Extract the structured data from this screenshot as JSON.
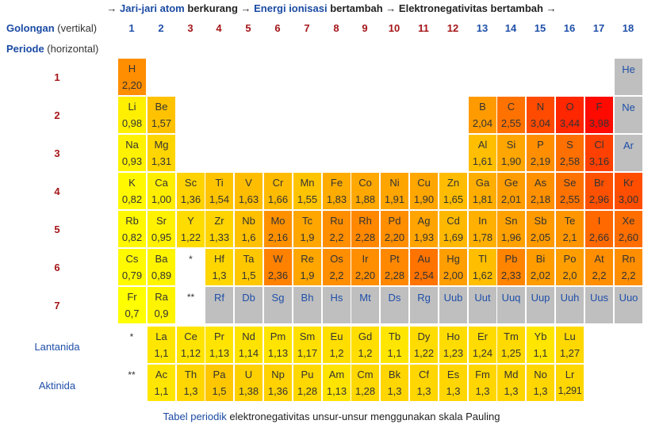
{
  "header": {
    "arrow1": "→",
    "link1": "Jari-jari atom",
    "text1": " berkurang ",
    "arrow2": "→",
    "link2": "Energi ionisasi",
    "text2": " bertambah ",
    "arrow3": "→",
    "text3": " Elektronegativitas bertambah ",
    "arrow4": "→"
  },
  "golongan_label": "Golongan",
  "golongan_sub": " (vertikal)",
  "periode_label": "Periode",
  "periode_sub": " (horizontal)",
  "groups": [
    "1",
    "2",
    "3",
    "4",
    "5",
    "6",
    "7",
    "8",
    "9",
    "10",
    "11",
    "12",
    "13",
    "14",
    "15",
    "16",
    "17",
    "18"
  ],
  "periods": [
    "1",
    "2",
    "3",
    "4",
    "5",
    "6",
    "7"
  ],
  "series_labels": {
    "lanthanides": "Lantanida",
    "actinides": "Aktinida"
  },
  "markers": {
    "lanthanide": "*",
    "actinide": "**"
  },
  "colors": {
    "gray": "#bfbfbf",
    "yellow": "#ffff00",
    "text_blue": "#1f4fa8",
    "text_red": "#a4161a"
  },
  "elements": [
    {
      "s": "H",
      "v": "2,20",
      "p": 1,
      "g": 1
    },
    {
      "s": "He",
      "v": "",
      "p": 1,
      "g": 18
    },
    {
      "s": "Li",
      "v": "0,98",
      "p": 2,
      "g": 1
    },
    {
      "s": "Be",
      "v": "1,57",
      "p": 2,
      "g": 2
    },
    {
      "s": "B",
      "v": "2,04",
      "p": 2,
      "g": 13
    },
    {
      "s": "C",
      "v": "2,55",
      "p": 2,
      "g": 14
    },
    {
      "s": "N",
      "v": "3,04",
      "p": 2,
      "g": 15
    },
    {
      "s": "O",
      "v": "3,44",
      "p": 2,
      "g": 16
    },
    {
      "s": "F",
      "v": "3,98",
      "p": 2,
      "g": 17
    },
    {
      "s": "Ne",
      "v": "",
      "p": 2,
      "g": 18
    },
    {
      "s": "Na",
      "v": "0,93",
      "p": 3,
      "g": 1
    },
    {
      "s": "Mg",
      "v": "1,31",
      "p": 3,
      "g": 2
    },
    {
      "s": "Al",
      "v": "1,61",
      "p": 3,
      "g": 13
    },
    {
      "s": "Si",
      "v": "1,90",
      "p": 3,
      "g": 14
    },
    {
      "s": "P",
      "v": "2,19",
      "p": 3,
      "g": 15
    },
    {
      "s": "S",
      "v": "2,58",
      "p": 3,
      "g": 16
    },
    {
      "s": "Cl",
      "v": "3,16",
      "p": 3,
      "g": 17
    },
    {
      "s": "Ar",
      "v": "",
      "p": 3,
      "g": 18
    },
    {
      "s": "K",
      "v": "0,82",
      "p": 4,
      "g": 1
    },
    {
      "s": "Ca",
      "v": "1,00",
      "p": 4,
      "g": 2
    },
    {
      "s": "Sc",
      "v": "1,36",
      "p": 4,
      "g": 3
    },
    {
      "s": "Ti",
      "v": "1,54",
      "p": 4,
      "g": 4
    },
    {
      "s": "V",
      "v": "1,63",
      "p": 4,
      "g": 5
    },
    {
      "s": "Cr",
      "v": "1,66",
      "p": 4,
      "g": 6
    },
    {
      "s": "Mn",
      "v": "1,55",
      "p": 4,
      "g": 7
    },
    {
      "s": "Fe",
      "v": "1,83",
      "p": 4,
      "g": 8
    },
    {
      "s": "Co",
      "v": "1,88",
      "p": 4,
      "g": 9
    },
    {
      "s": "Ni",
      "v": "1,91",
      "p": 4,
      "g": 10
    },
    {
      "s": "Cu",
      "v": "1,90",
      "p": 4,
      "g": 11
    },
    {
      "s": "Zn",
      "v": "1,65",
      "p": 4,
      "g": 12
    },
    {
      "s": "Ga",
      "v": "1,81",
      "p": 4,
      "g": 13
    },
    {
      "s": "Ge",
      "v": "2,01",
      "p": 4,
      "g": 14
    },
    {
      "s": "As",
      "v": "2,18",
      "p": 4,
      "g": 15
    },
    {
      "s": "Se",
      "v": "2,55",
      "p": 4,
      "g": 16
    },
    {
      "s": "Br",
      "v": "2,96",
      "p": 4,
      "g": 17
    },
    {
      "s": "Kr",
      "v": "3,00",
      "p": 4,
      "g": 18
    },
    {
      "s": "Rb",
      "v": "0,82",
      "p": 5,
      "g": 1
    },
    {
      "s": "Sr",
      "v": "0,95",
      "p": 5,
      "g": 2
    },
    {
      "s": "Y",
      "v": "1,22",
      "p": 5,
      "g": 3
    },
    {
      "s": "Zr",
      "v": "1,33",
      "p": 5,
      "g": 4
    },
    {
      "s": "Nb",
      "v": "1,6",
      "p": 5,
      "g": 5
    },
    {
      "s": "Mo",
      "v": "2,16",
      "p": 5,
      "g": 6
    },
    {
      "s": "Tc",
      "v": "1,9",
      "p": 5,
      "g": 7
    },
    {
      "s": "Ru",
      "v": "2,2",
      "p": 5,
      "g": 8
    },
    {
      "s": "Rh",
      "v": "2,28",
      "p": 5,
      "g": 9
    },
    {
      "s": "Pd",
      "v": "2,20",
      "p": 5,
      "g": 10
    },
    {
      "s": "Ag",
      "v": "1,93",
      "p": 5,
      "g": 11
    },
    {
      "s": "Cd",
      "v": "1,69",
      "p": 5,
      "g": 12
    },
    {
      "s": "In",
      "v": "1,78",
      "p": 5,
      "g": 13
    },
    {
      "s": "Sn",
      "v": "1,96",
      "p": 5,
      "g": 14
    },
    {
      "s": "Sb",
      "v": "2,05",
      "p": 5,
      "g": 15
    },
    {
      "s": "Te",
      "v": "2,1",
      "p": 5,
      "g": 16
    },
    {
      "s": "I",
      "v": "2,66",
      "p": 5,
      "g": 17
    },
    {
      "s": "Xe",
      "v": "2,60",
      "p": 5,
      "g": 18
    },
    {
      "s": "Cs",
      "v": "0,79",
      "p": 6,
      "g": 1
    },
    {
      "s": "Ba",
      "v": "0,89",
      "p": 6,
      "g": 2
    },
    {
      "s": "Hf",
      "v": "1,3",
      "p": 6,
      "g": 4
    },
    {
      "s": "Ta",
      "v": "1,5",
      "p": 6,
      "g": 5
    },
    {
      "s": "W",
      "v": "2,36",
      "p": 6,
      "g": 6
    },
    {
      "s": "Re",
      "v": "1,9",
      "p": 6,
      "g": 7
    },
    {
      "s": "Os",
      "v": "2,2",
      "p": 6,
      "g": 8
    },
    {
      "s": "Ir",
      "v": "2,20",
      "p": 6,
      "g": 9
    },
    {
      "s": "Pt",
      "v": "2,28",
      "p": 6,
      "g": 10
    },
    {
      "s": "Au",
      "v": "2,54",
      "p": 6,
      "g": 11
    },
    {
      "s": "Hg",
      "v": "2,00",
      "p": 6,
      "g": 12
    },
    {
      "s": "Tl",
      "v": "1,62",
      "p": 6,
      "g": 13
    },
    {
      "s": "Pb",
      "v": "2,33",
      "p": 6,
      "g": 14
    },
    {
      "s": "Bi",
      "v": "2,02",
      "p": 6,
      "g": 15
    },
    {
      "s": "Po",
      "v": "2,0",
      "p": 6,
      "g": 16
    },
    {
      "s": "At",
      "v": "2,2",
      "p": 6,
      "g": 17
    },
    {
      "s": "Rn",
      "v": "2,2",
      "p": 6,
      "g": 18
    },
    {
      "s": "Fr",
      "v": "0,7",
      "p": 7,
      "g": 1
    },
    {
      "s": "Ra",
      "v": "0,9",
      "p": 7,
      "g": 2
    },
    {
      "s": "Rf",
      "v": "",
      "p": 7,
      "g": 4
    },
    {
      "s": "Db",
      "v": "",
      "p": 7,
      "g": 5
    },
    {
      "s": "Sg",
      "v": "",
      "p": 7,
      "g": 6
    },
    {
      "s": "Bh",
      "v": "",
      "p": 7,
      "g": 7
    },
    {
      "s": "Hs",
      "v": "",
      "p": 7,
      "g": 8
    },
    {
      "s": "Mt",
      "v": "",
      "p": 7,
      "g": 9
    },
    {
      "s": "Ds",
      "v": "",
      "p": 7,
      "g": 10
    },
    {
      "s": "Rg",
      "v": "",
      "p": 7,
      "g": 11
    },
    {
      "s": "Uub",
      "v": "",
      "p": 7,
      "g": 12
    },
    {
      "s": "Uut",
      "v": "",
      "p": 7,
      "g": 13
    },
    {
      "s": "Uuq",
      "v": "",
      "p": 7,
      "g": 14
    },
    {
      "s": "Uup",
      "v": "",
      "p": 7,
      "g": 15
    },
    {
      "s": "Uuh",
      "v": "",
      "p": 7,
      "g": 16
    },
    {
      "s": "Uus",
      "v": "",
      "p": 7,
      "g": 17
    },
    {
      "s": "Uuo",
      "v": "",
      "p": 7,
      "g": 18
    }
  ],
  "lanthanides": [
    {
      "s": "La",
      "v": "1,1"
    },
    {
      "s": "Ce",
      "v": "1,12"
    },
    {
      "s": "Pr",
      "v": "1,13"
    },
    {
      "s": "Nd",
      "v": "1,14"
    },
    {
      "s": "Pm",
      "v": "1,13"
    },
    {
      "s": "Sm",
      "v": "1,17"
    },
    {
      "s": "Eu",
      "v": "1,2"
    },
    {
      "s": "Gd",
      "v": "1,2"
    },
    {
      "s": "Tb",
      "v": "1,1"
    },
    {
      "s": "Dy",
      "v": "1,22"
    },
    {
      "s": "Ho",
      "v": "1,23"
    },
    {
      "s": "Er",
      "v": "1,24"
    },
    {
      "s": "Tm",
      "v": "1,25"
    },
    {
      "s": "Yb",
      "v": "1,1"
    },
    {
      "s": "Lu",
      "v": "1,27"
    }
  ],
  "actinides": [
    {
      "s": "Ac",
      "v": "1,1"
    },
    {
      "s": "Th",
      "v": "1,3"
    },
    {
      "s": "Pa",
      "v": "1,5"
    },
    {
      "s": "U",
      "v": "1,38"
    },
    {
      "s": "Np",
      "v": "1,36"
    },
    {
      "s": "Pu",
      "v": "1,28"
    },
    {
      "s": "Am",
      "v": "1,13"
    },
    {
      "s": "Cm",
      "v": "1,28"
    },
    {
      "s": "Bk",
      "v": "1,3"
    },
    {
      "s": "Cf",
      "v": "1,3"
    },
    {
      "s": "Es",
      "v": "1,3"
    },
    {
      "s": "Fm",
      "v": "1,3"
    },
    {
      "s": "Md",
      "v": "1,3"
    },
    {
      "s": "No",
      "v": "1,3"
    },
    {
      "s": "Lr",
      "v": "1,291"
    }
  ],
  "footer": {
    "link": "Tabel periodik",
    "text": " elektronegativitas unsur-unsur menggunakan skala Pauling"
  }
}
